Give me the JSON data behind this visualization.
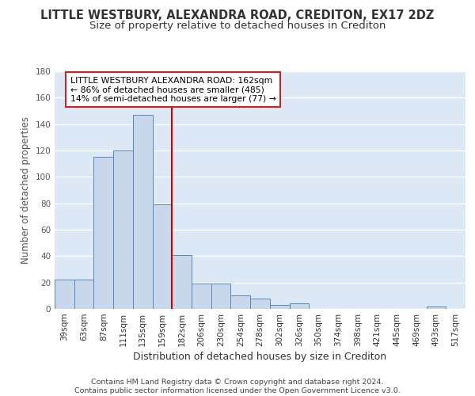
{
  "title": "LITTLE WESTBURY, ALEXANDRA ROAD, CREDITON, EX17 2DZ",
  "subtitle": "Size of property relative to detached houses in Crediton",
  "xlabel": "Distribution of detached houses by size in Crediton",
  "ylabel": "Number of detached properties",
  "bar_color": "#c8d8ea",
  "bar_edge_color": "#5588bb",
  "background_color": "#dce8f5",
  "grid_color": "#ffffff",
  "categories": [
    "39sqm",
    "63sqm",
    "87sqm",
    "111sqm",
    "135sqm",
    "159sqm",
    "182sqm",
    "206sqm",
    "230sqm",
    "254sqm",
    "278sqm",
    "302sqm",
    "326sqm",
    "350sqm",
    "374sqm",
    "398sqm",
    "421sqm",
    "445sqm",
    "469sqm",
    "493sqm",
    "517sqm"
  ],
  "values": [
    22,
    22,
    115,
    120,
    147,
    79,
    41,
    19,
    19,
    10,
    8,
    3,
    4,
    0,
    0,
    0,
    0,
    0,
    0,
    2,
    0
  ],
  "ylim": [
    0,
    180
  ],
  "yticks": [
    0,
    20,
    40,
    60,
    80,
    100,
    120,
    140,
    160,
    180
  ],
  "property_line_color": "#cc0000",
  "annotation_line1": "LITTLE WESTBURY ALEXANDRA ROAD: 162sqm",
  "annotation_line2": "← 86% of detached houses are smaller (485)",
  "annotation_line3": "14% of semi-detached houses are larger (77) →",
  "annotation_box_color": "#ffffff",
  "annotation_box_edge": "#cc2222",
  "footer_text": "Contains HM Land Registry data © Crown copyright and database right 2024.\nContains public sector information licensed under the Open Government Licence v3.0.",
  "title_fontsize": 10.5,
  "subtitle_fontsize": 9.5,
  "ylabel_fontsize": 8.5,
  "xlabel_fontsize": 9,
  "tick_fontsize": 7.5,
  "annotation_fontsize": 7.8,
  "footer_fontsize": 6.8
}
